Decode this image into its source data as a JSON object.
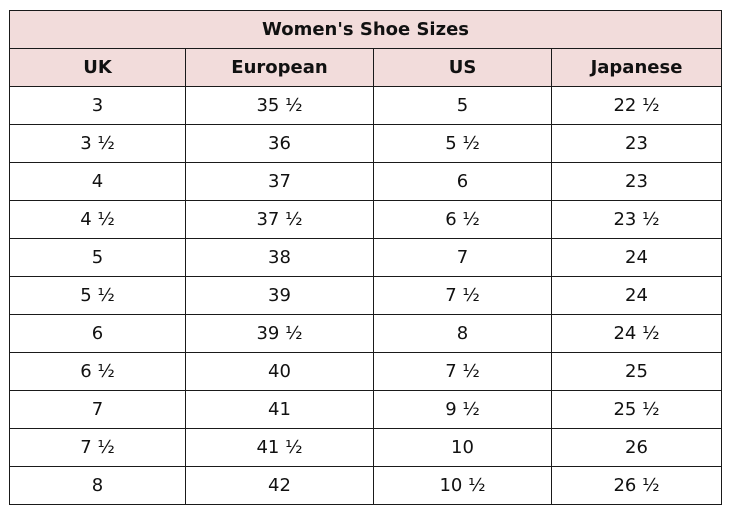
{
  "table": {
    "title": "Women's Shoe Sizes",
    "header_color": "#f2dcdb",
    "columns": [
      "UK",
      "European",
      "US",
      "Japanese"
    ],
    "rows": [
      [
        "3",
        "35 ½",
        "5",
        "22 ½"
      ],
      [
        "3 ½",
        "36",
        "5 ½",
        "23"
      ],
      [
        "4",
        "37",
        "6",
        "23"
      ],
      [
        "4 ½",
        "37 ½",
        "6 ½",
        "23 ½"
      ],
      [
        "5",
        "38",
        "7",
        "24"
      ],
      [
        "5 ½",
        "39",
        "7 ½",
        "24"
      ],
      [
        "6",
        "39 ½",
        "8",
        "24 ½"
      ],
      [
        "6 ½",
        "40",
        "7 ½",
        "25"
      ],
      [
        "7",
        "41",
        "9 ½",
        "25 ½"
      ],
      [
        "7 ½",
        "41 ½",
        "10",
        "26"
      ],
      [
        "8",
        "42",
        "10 ½",
        "26 ½"
      ]
    ]
  }
}
